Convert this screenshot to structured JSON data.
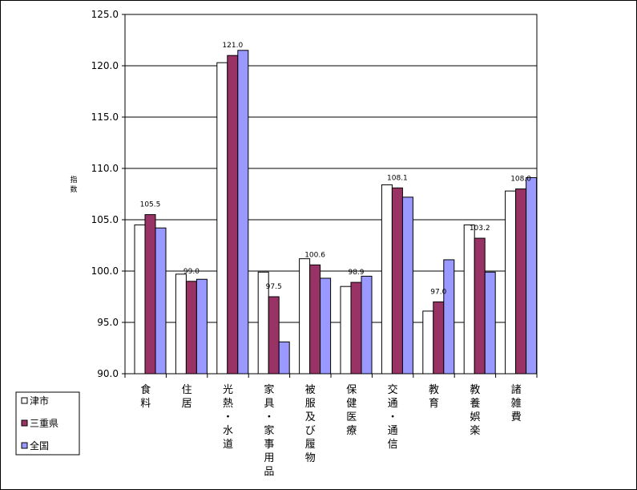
{
  "chart_data": {
    "type": "bar",
    "ylabel": "指数",
    "ylim": [
      90,
      125
    ],
    "yticks": [
      "90.0",
      "95.0",
      "100.0",
      "105.0",
      "110.0",
      "115.0",
      "120.0",
      "125.0"
    ],
    "grid": true,
    "legend_position": "bottom-left",
    "categories": [
      "食料",
      "住居",
      "光熱・水道",
      "家具・家事用品",
      "被服及び履物",
      "保健医療",
      "交通・通信",
      "教育",
      "教養娯楽",
      "諸雑費"
    ],
    "series": [
      {
        "name": "津市",
        "color": "#ffffff",
        "values": [
          104.5,
          99.7,
          120.3,
          99.9,
          101.2,
          98.5,
          108.4,
          96.1,
          104.5,
          107.8
        ]
      },
      {
        "name": "三重県",
        "color": "#993366",
        "values": [
          105.5,
          99.0,
          121.0,
          97.5,
          100.6,
          98.9,
          108.1,
          97.0,
          103.2,
          108.0
        ]
      },
      {
        "name": "全国",
        "color": "#9999ff",
        "values": [
          104.2,
          99.2,
          121.5,
          93.1,
          99.3,
          99.5,
          107.2,
          101.1,
          99.9,
          109.1
        ]
      }
    ],
    "data_labels": {
      "series": "三重県",
      "texts": [
        "105.5",
        "99.0",
        "121.0",
        "97.5",
        "100.6",
        "98.9",
        "108.1",
        "97.0",
        "103.2",
        "108.0"
      ]
    }
  }
}
